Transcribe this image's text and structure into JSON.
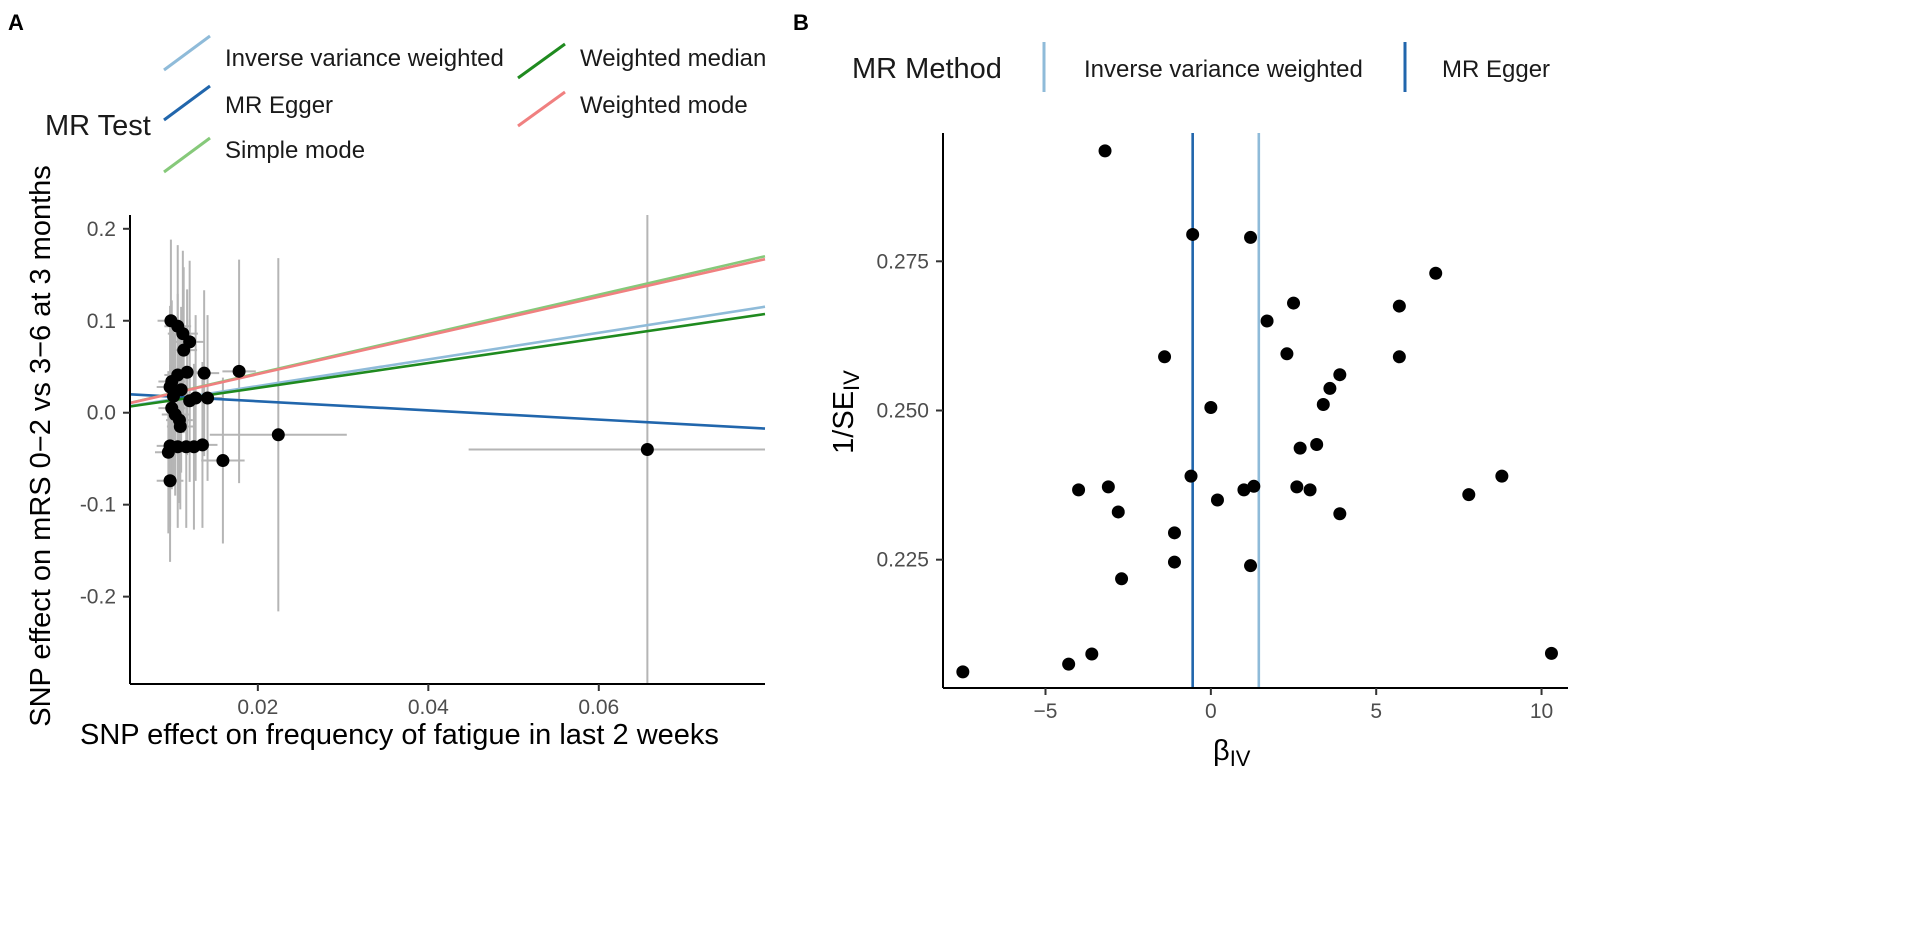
{
  "panels": {
    "a": {
      "tag": "A"
    },
    "b": {
      "tag": "B"
    }
  },
  "colors": {
    "ivw": "#8fbbd9",
    "egger": "#2166ac",
    "weighted_median": "#1f8a1f",
    "simple_mode": "#86c97a",
    "weighted_mode": "#f08080",
    "point": "#000000",
    "errorbar": "#b5b5b5",
    "axis": "#000000"
  },
  "chart_data": [
    {
      "id": "scatter-A",
      "type": "scatter",
      "xlabel": "SNP effect on frequency of fatigue in last 2 weeks",
      "ylabel": "SNP effect on mRS 0−2 vs 3−6 at 3 months",
      "xlim": [
        0.005,
        0.0795
      ],
      "ylim": [
        -0.295,
        0.215
      ],
      "xticks": [
        0.02,
        0.04,
        0.06
      ],
      "xtick_labels": [
        "0.02",
        "0.04",
        "0.06"
      ],
      "yticks": [
        -0.2,
        -0.1,
        0.0,
        0.1,
        0.2
      ],
      "ytick_labels": [
        "-0.2",
        "-0.1",
        "0.0",
        "0.1",
        "0.2"
      ],
      "legend": {
        "title": "MR Test",
        "entries": [
          {
            "key": "ivw",
            "label": "Inverse variance weighted"
          },
          {
            "key": "egger",
            "label": "MR Egger"
          },
          {
            "key": "simple_mode",
            "label": "Simple mode"
          },
          {
            "key": "weighted_median",
            "label": "Weighted median"
          },
          {
            "key": "weighted_mode",
            "label": "Weighted mode"
          }
        ]
      },
      "lines": [
        {
          "key": "ivw",
          "name": "Inverse variance weighted",
          "intercept": 0.0,
          "slope": 1.45
        },
        {
          "key": "egger",
          "name": "MR Egger",
          "intercept": 0.0225,
          "slope": -0.5
        },
        {
          "key": "simple_mode",
          "name": "Simple mode",
          "intercept": 0.0,
          "slope": 2.14
        },
        {
          "key": "weighted_median",
          "name": "Weighted median",
          "intercept": 0.0,
          "slope": 1.35
        },
        {
          "key": "weighted_mode",
          "name": "Weighted mode",
          "intercept": 0.0,
          "slope": 2.1
        }
      ],
      "points": [
        {
          "x": 0.0098,
          "y": 0.1,
          "xse": 0.0008,
          "yse": 0.045
        },
        {
          "x": 0.0106,
          "y": 0.094,
          "xse": 0.0008,
          "yse": 0.045
        },
        {
          "x": 0.0112,
          "y": 0.086,
          "xse": 0.0009,
          "yse": 0.046
        },
        {
          "x": 0.012,
          "y": 0.077,
          "xse": 0.0009,
          "yse": 0.045
        },
        {
          "x": 0.0113,
          "y": 0.068,
          "xse": 0.0008,
          "yse": 0.046
        },
        {
          "x": 0.0117,
          "y": 0.044,
          "xse": 0.0009,
          "yse": 0.046
        },
        {
          "x": 0.0106,
          "y": 0.041,
          "xse": 0.0008,
          "yse": 0.045
        },
        {
          "x": 0.0099,
          "y": 0.034,
          "xse": 0.0008,
          "yse": 0.045
        },
        {
          "x": 0.0097,
          "y": 0.028,
          "xse": 0.0008,
          "yse": 0.045
        },
        {
          "x": 0.011,
          "y": 0.025,
          "xse": 0.0008,
          "yse": 0.046
        },
        {
          "x": 0.0101,
          "y": 0.018,
          "xse": 0.0008,
          "yse": 0.045
        },
        {
          "x": 0.012,
          "y": 0.013,
          "xse": 0.0009,
          "yse": 0.045
        },
        {
          "x": 0.0127,
          "y": 0.016,
          "xse": 0.0009,
          "yse": 0.046
        },
        {
          "x": 0.0137,
          "y": 0.043,
          "xse": 0.0009,
          "yse": 0.046
        },
        {
          "x": 0.0141,
          "y": 0.016,
          "xse": 0.0009,
          "yse": 0.046
        },
        {
          "x": 0.0099,
          "y": 0.005,
          "xse": 0.0008,
          "yse": 0.045
        },
        {
          "x": 0.0103,
          "y": -0.002,
          "xse": 0.0008,
          "yse": 0.045
        },
        {
          "x": 0.0108,
          "y": -0.008,
          "xse": 0.0008,
          "yse": 0.046
        },
        {
          "x": 0.0109,
          "y": -0.015,
          "xse": 0.0008,
          "yse": 0.046
        },
        {
          "x": 0.0097,
          "y": -0.036,
          "xse": 0.0008,
          "yse": 0.045
        },
        {
          "x": 0.0106,
          "y": -0.037,
          "xse": 0.0008,
          "yse": 0.045
        },
        {
          "x": 0.0116,
          "y": -0.037,
          "xse": 0.0009,
          "yse": 0.045
        },
        {
          "x": 0.0125,
          "y": -0.037,
          "xse": 0.0009,
          "yse": 0.046
        },
        {
          "x": 0.0135,
          "y": -0.035,
          "xse": 0.0009,
          "yse": 0.046
        },
        {
          "x": 0.0095,
          "y": -0.043,
          "xse": 0.0008,
          "yse": 0.045
        },
        {
          "x": 0.0159,
          "y": -0.052,
          "xse": 0.0013,
          "yse": 0.046
        },
        {
          "x": 0.0097,
          "y": -0.074,
          "xse": 0.0008,
          "yse": 0.045
        },
        {
          "x": 0.0178,
          "y": 0.045,
          "xse": 0.001,
          "yse": 0.062
        },
        {
          "x": 0.0224,
          "y": -0.024,
          "xse": 0.0041,
          "yse": 0.098
        },
        {
          "x": 0.0657,
          "y": -0.04,
          "xse": 0.0107,
          "yse": 0.235
        }
      ]
    },
    {
      "id": "funnel-B",
      "type": "scatter",
      "xlabel": "βIV",
      "xlabel_main": "β",
      "xlabel_sub": "IV",
      "ylabel": "1/SEIV",
      "ylabel_main": "1/SE",
      "ylabel_sub": "IV",
      "xlim": [
        -8.1,
        10.8
      ],
      "ylim": [
        0.2035,
        0.2965
      ],
      "xticks": [
        -5,
        0,
        5,
        10
      ],
      "xtick_labels": [
        "−5",
        "0",
        "5",
        "10"
      ],
      "yticks": [
        0.225,
        0.25,
        0.275
      ],
      "ytick_labels": [
        "0.225",
        "0.250",
        "0.275"
      ],
      "legend": {
        "title": "MR Method",
        "entries": [
          {
            "key": "ivw",
            "label": "Inverse variance weighted"
          },
          {
            "key": "egger",
            "label": "MR Egger"
          }
        ]
      },
      "vlines": [
        {
          "key": "egger",
          "name": "MR Egger",
          "x": -0.55
        },
        {
          "key": "ivw",
          "name": "Inverse variance weighted",
          "x": 1.45
        }
      ],
      "points": [
        {
          "x": -3.2,
          "y": 0.2935
        },
        {
          "x": -0.55,
          "y": 0.2795
        },
        {
          "x": 1.2,
          "y": 0.279
        },
        {
          "x": 6.8,
          "y": 0.273
        },
        {
          "x": 2.5,
          "y": 0.268
        },
        {
          "x": 5.7,
          "y": 0.2675
        },
        {
          "x": 1.7,
          "y": 0.265
        },
        {
          "x": -1.4,
          "y": 0.259
        },
        {
          "x": 2.3,
          "y": 0.2595
        },
        {
          "x": 5.7,
          "y": 0.259
        },
        {
          "x": 3.9,
          "y": 0.256
        },
        {
          "x": 3.6,
          "y": 0.2537
        },
        {
          "x": 3.4,
          "y": 0.251
        },
        {
          "x": 0.0,
          "y": 0.2505
        },
        {
          "x": 3.2,
          "y": 0.2443
        },
        {
          "x": 2.7,
          "y": 0.2437
        },
        {
          "x": -0.6,
          "y": 0.239
        },
        {
          "x": 8.8,
          "y": 0.239
        },
        {
          "x": -3.1,
          "y": 0.2372
        },
        {
          "x": -4.0,
          "y": 0.2367
        },
        {
          "x": 2.6,
          "y": 0.2372
        },
        {
          "x": 1.0,
          "y": 0.2367
        },
        {
          "x": 1.3,
          "y": 0.2373
        },
        {
          "x": 3.0,
          "y": 0.2367
        },
        {
          "x": 7.8,
          "y": 0.2359
        },
        {
          "x": 0.2,
          "y": 0.235
        },
        {
          "x": -2.8,
          "y": 0.233
        },
        {
          "x": 3.9,
          "y": 0.2327
        },
        {
          "x": -1.1,
          "y": 0.2295
        },
        {
          "x": -1.1,
          "y": 0.2246
        },
        {
          "x": 1.2,
          "y": 0.224
        },
        {
          "x": -2.7,
          "y": 0.2218
        },
        {
          "x": -3.6,
          "y": 0.2092
        },
        {
          "x": -4.3,
          "y": 0.2075
        },
        {
          "x": 10.3,
          "y": 0.2093
        },
        {
          "x": -7.5,
          "y": 0.2062
        }
      ]
    }
  ]
}
